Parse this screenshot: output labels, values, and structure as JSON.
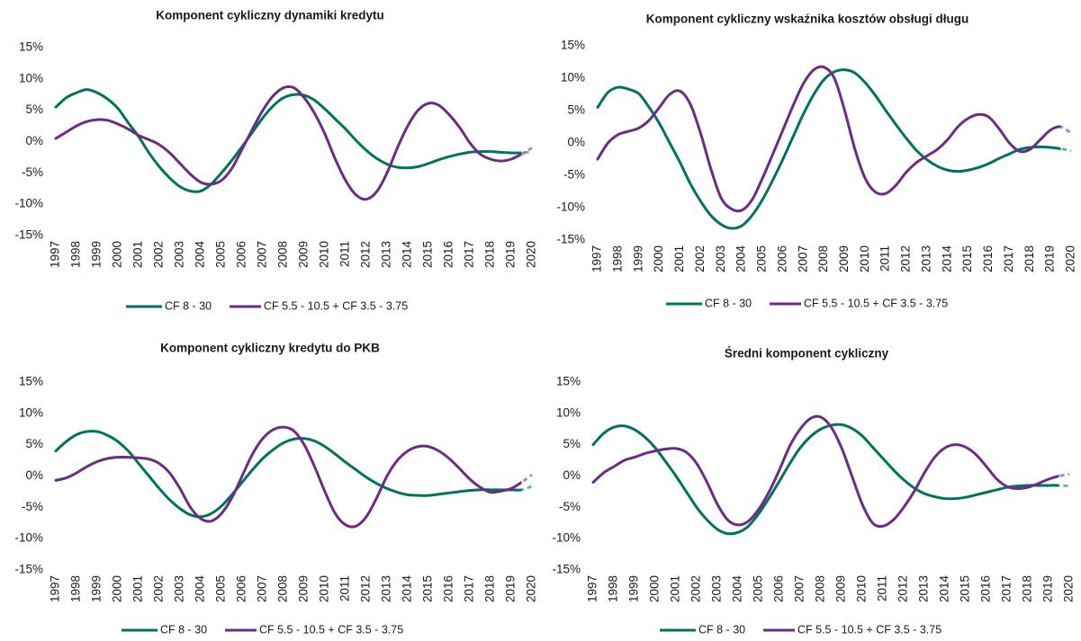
{
  "chart_data": [
    {
      "type": "line",
      "title": "Komponent cykliczny dynamiki kredytu",
      "x": [
        1997,
        1997.5,
        1998,
        1998.5,
        1999,
        1999.5,
        2000,
        2000.5,
        2001,
        2001.5,
        2002,
        2002.5,
        2003,
        2003.5,
        2004,
        2004.5,
        2005,
        2005.5,
        2006,
        2006.5,
        2007,
        2007.5,
        2008,
        2008.5,
        2009,
        2009.5,
        2010,
        2010.5,
        2011,
        2011.5,
        2012,
        2012.5,
        2013,
        2013.5,
        2014,
        2014.5,
        2015,
        2015.5,
        2016,
        2016.5,
        2017,
        2017.5,
        2018,
        2018.5,
        2019,
        2019.5,
        2020
      ],
      "series": [
        {
          "name": "CF 8 - 30",
          "color": "#00735f",
          "values": [
            5.5,
            7,
            7.8,
            8.3,
            7.8,
            6.8,
            5.3,
            3,
            0.8,
            -1.8,
            -4,
            -5.8,
            -7.2,
            -7.9,
            -7.9,
            -6.8,
            -5,
            -3,
            -0.8,
            1.5,
            3.8,
            5.7,
            7,
            7.5,
            7.4,
            6.6,
            5.2,
            3.6,
            2,
            0.2,
            -1.4,
            -2.7,
            -3.6,
            -4.1,
            -4.2,
            -4,
            -3.5,
            -2.9,
            -2.4,
            -2,
            -1.7,
            -1.6,
            -1.6,
            -1.7,
            -1.8,
            -1.8,
            -1.6
          ]
        },
        {
          "name": "CF 5.5 - 10.5 + CF 3.5 - 3.75",
          "color": "#6b2c85",
          "values": [
            0.5,
            1.5,
            2.5,
            3.2,
            3.5,
            3.4,
            2.8,
            2,
            1,
            0.3,
            -0.5,
            -1.8,
            -3.5,
            -5.2,
            -6.5,
            -6.8,
            -6.2,
            -4.3,
            -1.2,
            2,
            5,
            7.3,
            8.6,
            8.6,
            7,
            4.5,
            1.2,
            -2.8,
            -6.2,
            -8.5,
            -9.2,
            -8,
            -5,
            -1,
            2.5,
            5,
            6.1,
            5.8,
            4.3,
            2.3,
            -0.2,
            -2,
            -2.8,
            -3.1,
            -2.8,
            -2,
            -1
          ]
        }
      ],
      "dashed_from": 2019.5,
      "xlim": [
        1997,
        2020
      ],
      "xticks": [
        1997,
        1998,
        1999,
        2000,
        2001,
        2002,
        2003,
        2004,
        2005,
        2006,
        2007,
        2008,
        2009,
        2010,
        2011,
        2012,
        2013,
        2014,
        2015,
        2016,
        2017,
        2018,
        2019,
        2020
      ],
      "ylim": [
        -15,
        15
      ],
      "yticks": [
        {
          "value": 15,
          "label": "15%"
        },
        {
          "value": 10,
          "label": "10%"
        },
        {
          "value": 5,
          "label": "5%"
        },
        {
          "value": 0,
          "label": "0%"
        },
        {
          "value": -5,
          "label": "-5%"
        },
        {
          "value": -10,
          "label": "-10%"
        },
        {
          "value": -15,
          "label": "-15%"
        }
      ],
      "grid": false,
      "legend": "bottom"
    },
    {
      "type": "line",
      "title": "Komponent cykliczny wskaźnika kosztów obsługi długu",
      "x": [
        1997,
        1997.5,
        1998,
        1998.5,
        1999,
        1999.5,
        2000,
        2000.5,
        2001,
        2001.5,
        2002,
        2002.5,
        2003,
        2003.5,
        2004,
        2004.5,
        2005,
        2005.5,
        2006,
        2006.5,
        2007,
        2007.5,
        2008,
        2008.5,
        2009,
        2009.5,
        2010,
        2010.5,
        2011,
        2011.5,
        2012,
        2012.5,
        2013,
        2013.5,
        2014,
        2014.5,
        2015,
        2015.5,
        2016,
        2016.5,
        2017,
        2017.5,
        2018,
        2018.5,
        2019,
        2019.5,
        2020
      ],
      "series": [
        {
          "name": "CF 8 - 30",
          "color": "#00735f",
          "values": [
            5.5,
            7.8,
            8.6,
            8.3,
            7.6,
            5.5,
            3,
            0,
            -3,
            -6.3,
            -9,
            -11.2,
            -12.6,
            -13.2,
            -12.8,
            -11.2,
            -8.8,
            -5.8,
            -2.5,
            1,
            4.5,
            7.5,
            9.8,
            11,
            11.3,
            10.8,
            9.3,
            7.3,
            5,
            2.8,
            0.7,
            -1.2,
            -2.6,
            -3.6,
            -4.2,
            -4.4,
            -4.2,
            -3.8,
            -3.2,
            -2.4,
            -1.7,
            -1,
            -0.7,
            -0.6,
            -0.7,
            -0.9,
            -1.2
          ]
        },
        {
          "name": "CF 5.5 - 10.5 + CF 3.5 - 3.75",
          "color": "#6b2c85",
          "values": [
            -2.5,
            0,
            1.3,
            1.8,
            2.3,
            3.5,
            5.5,
            7.5,
            8,
            6,
            1.5,
            -4,
            -8.5,
            -10.2,
            -10.4,
            -8.8,
            -5.5,
            -1.8,
            2,
            5.8,
            9.2,
            11.3,
            11.7,
            10,
            5,
            -1,
            -5.5,
            -7.6,
            -7.8,
            -6.5,
            -4.5,
            -3,
            -2,
            -1,
            0.5,
            2.5,
            3.8,
            4.4,
            4,
            2.2,
            0,
            -1.3,
            -1,
            0.5,
            2,
            2.5,
            1.5
          ]
        }
      ],
      "dashed_from": 2019.5,
      "xlim": [
        1997,
        2020
      ],
      "xticks": [
        1997,
        1998,
        1999,
        2000,
        2001,
        2002,
        2003,
        2004,
        2005,
        2006,
        2007,
        2008,
        2009,
        2010,
        2011,
        2012,
        2013,
        2014,
        2015,
        2016,
        2017,
        2018,
        2019,
        2020
      ],
      "ylim": [
        -15,
        15
      ],
      "yticks": [
        {
          "value": 15,
          "label": "15%"
        },
        {
          "value": 10,
          "label": "10%"
        },
        {
          "value": 5,
          "label": "5%"
        },
        {
          "value": 0,
          "label": "0%"
        },
        {
          "value": -5,
          "label": "-5%"
        },
        {
          "value": -10,
          "label": "-10%"
        },
        {
          "value": -15,
          "label": "-15%"
        }
      ],
      "grid": false,
      "legend": "bottom"
    },
    {
      "type": "line",
      "title": "Komponent cykliczny kredytu do PKB",
      "x": [
        1997,
        1997.5,
        1998,
        1998.5,
        1999,
        1999.5,
        2000,
        2000.5,
        2001,
        2001.5,
        2002,
        2002.5,
        2003,
        2003.5,
        2004,
        2004.5,
        2005,
        2005.5,
        2006,
        2006.5,
        2007,
        2007.5,
        2008,
        2008.5,
        2009,
        2009.5,
        2010,
        2010.5,
        2011,
        2011.5,
        2012,
        2012.5,
        2013,
        2013.5,
        2014,
        2014.5,
        2015,
        2015.5,
        2016,
        2016.5,
        2017,
        2017.5,
        2018,
        2018.5,
        2019,
        2019.5,
        2020
      ],
      "series": [
        {
          "name": "CF 8 - 30",
          "color": "#00735f",
          "values": [
            4,
            5.5,
            6.6,
            7.1,
            7.1,
            6.5,
            5.5,
            4,
            2,
            0,
            -2,
            -3.8,
            -5.2,
            -6.2,
            -6.5,
            -6,
            -4.8,
            -3,
            -1,
            1,
            2.8,
            4.2,
            5.3,
            5.9,
            6,
            5.6,
            4.7,
            3.5,
            2.2,
            1,
            -0.2,
            -1.2,
            -2,
            -2.6,
            -3,
            -3.1,
            -3.1,
            -2.9,
            -2.7,
            -2.5,
            -2.3,
            -2.2,
            -2.2,
            -2.2,
            -2.2,
            -2.2,
            -1.6
          ]
        },
        {
          "name": "CF 5.5 - 10.5 + CF 3.5 - 3.75",
          "color": "#6b2c85",
          "values": [
            -0.7,
            -0.3,
            0.5,
            1.5,
            2.3,
            2.8,
            3,
            3,
            2.9,
            2.7,
            2,
            0.5,
            -2,
            -5,
            -6.8,
            -7.2,
            -6,
            -3.5,
            0,
            3.5,
            6,
            7.4,
            7.8,
            7.2,
            5,
            1.5,
            -2.5,
            -6,
            -7.8,
            -8,
            -6.5,
            -3.5,
            0,
            2.5,
            4,
            4.7,
            4.7,
            4,
            2.8,
            1.2,
            -0.5,
            -1.8,
            -2.6,
            -2.4,
            -2,
            -1,
            0.2
          ]
        }
      ],
      "dashed_from": 2019.5,
      "xlim": [
        1997,
        2020
      ],
      "xticks": [
        1997,
        1998,
        1999,
        2000,
        2001,
        2002,
        2003,
        2004,
        2005,
        2006,
        2007,
        2008,
        2009,
        2010,
        2011,
        2012,
        2013,
        2014,
        2015,
        2016,
        2017,
        2018,
        2019,
        2020
      ],
      "ylim": [
        -15,
        15
      ],
      "yticks": [
        {
          "value": 15,
          "label": "15%"
        },
        {
          "value": 10,
          "label": "10%"
        },
        {
          "value": 5,
          "label": "5%"
        },
        {
          "value": 0,
          "label": "0%"
        },
        {
          "value": -5,
          "label": "-5%"
        },
        {
          "value": -10,
          "label": "-10%"
        },
        {
          "value": -15,
          "label": "-15%"
        }
      ],
      "grid": false,
      "legend": "bottom"
    },
    {
      "type": "line",
      "title": "Średni komponent cykliczny",
      "x": [
        1997,
        1997.5,
        1998,
        1998.5,
        1999,
        1999.5,
        2000,
        2000.5,
        2001,
        2001.5,
        2002,
        2002.5,
        2003,
        2003.5,
        2004,
        2004.5,
        2005,
        2005.5,
        2006,
        2006.5,
        2007,
        2007.5,
        2008,
        2008.5,
        2009,
        2009.5,
        2010,
        2010.5,
        2011,
        2011.5,
        2012,
        2012.5,
        2013,
        2013.5,
        2014,
        2014.5,
        2015,
        2015.5,
        2016,
        2016.5,
        2017,
        2017.5,
        2018,
        2018.5,
        2019,
        2019.5,
        2020
      ],
      "series": [
        {
          "name": "CF 8 - 30",
          "color": "#00735f",
          "values": [
            5,
            6.8,
            7.8,
            8,
            7.4,
            6.2,
            4.5,
            2.3,
            0,
            -2.5,
            -5,
            -7,
            -8.5,
            -9.2,
            -9,
            -8,
            -6,
            -3.5,
            -0.8,
            2,
            4.5,
            6.3,
            7.5,
            8.1,
            8.2,
            7.6,
            6.4,
            4.6,
            2.8,
            1,
            -0.6,
            -1.9,
            -2.8,
            -3.3,
            -3.6,
            -3.6,
            -3.4,
            -3,
            -2.6,
            -2.2,
            -1.8,
            -1.6,
            -1.5,
            -1.5,
            -1.5,
            -1.5,
            -1.6
          ]
        },
        {
          "name": "CF 5.5 - 10.5 + CF 3.5 - 3.75",
          "color": "#6b2c85",
          "values": [
            -1,
            0.5,
            1.5,
            2.5,
            3,
            3.6,
            4,
            4.3,
            4.4,
            3.8,
            2,
            -1,
            -4.5,
            -7,
            -7.8,
            -7.2,
            -5.3,
            -2.5,
            1,
            4.8,
            7.5,
            9.2,
            9.4,
            7.8,
            4.5,
            0,
            -4.5,
            -7.5,
            -8,
            -7,
            -5,
            -2.5,
            0.5,
            3,
            4.5,
            5,
            4.6,
            3.4,
            1.5,
            -0.5,
            -1.7,
            -2,
            -1.8,
            -1.2,
            -0.5,
            0,
            0.3
          ]
        }
      ],
      "dashed_from": 2019.5,
      "xlim": [
        1997,
        2020
      ],
      "xticks": [
        1997,
        1998,
        1999,
        2000,
        2001,
        2002,
        2003,
        2004,
        2005,
        2006,
        2007,
        2008,
        2009,
        2010,
        2011,
        2012,
        2013,
        2014,
        2015,
        2016,
        2017,
        2018,
        2019,
        2020
      ],
      "ylim": [
        -15,
        15
      ],
      "yticks": [
        {
          "value": 15,
          "label": "15%"
        },
        {
          "value": 10,
          "label": "10%"
        },
        {
          "value": 5,
          "label": "5%"
        },
        {
          "value": 0,
          "label": "0%"
        },
        {
          "value": -5,
          "label": "-5%"
        },
        {
          "value": -10,
          "label": "-10%"
        },
        {
          "value": -15,
          "label": "-15%"
        }
      ],
      "grid": false,
      "legend": "bottom"
    }
  ]
}
